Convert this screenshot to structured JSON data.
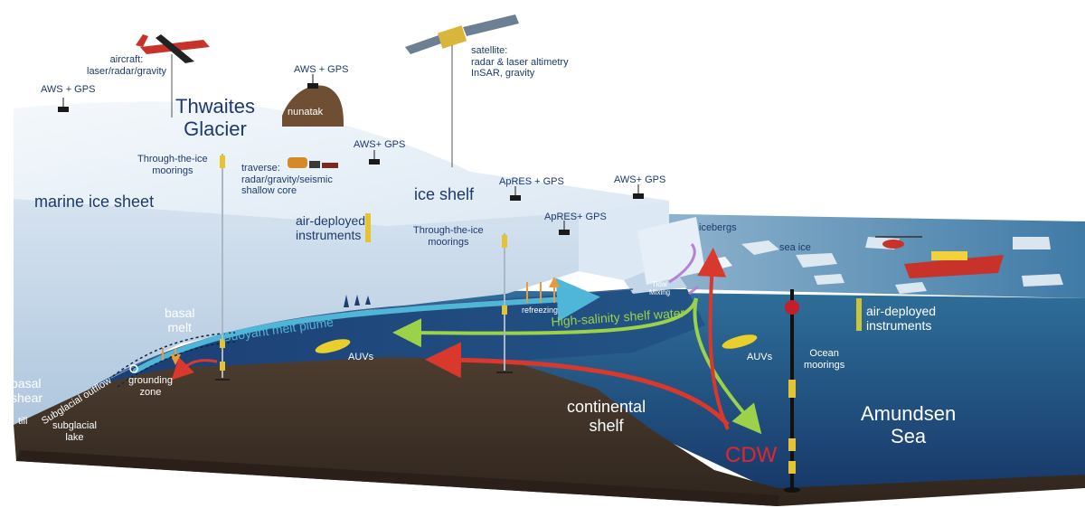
{
  "labels": {
    "aircraft": "aircraft:\nlaser/radar/gravity",
    "aws_gps_left": "AWS + GPS",
    "thwaites_glacier": "Thwaites\nGlacier",
    "aws_gps_nunatak": "AWS + GPS",
    "nunatak": "nunatak",
    "satellite": "satellite:\nradar & laser altimetry\nInSAR, gravity",
    "aws_gps_mid": "AWS+ GPS",
    "through_ice_moorings_left": "Through-the-ice\nmoorings",
    "traverse": "traverse:\nradar/gravity/seismic\nshallow core",
    "marine_ice_sheet": "marine ice sheet",
    "ice_shelf": "ice shelf",
    "apres_gps_1": "ApRES + GPS",
    "aws_gps_right": "AWS+ GPS",
    "apres_gps_2": "ApRES+ GPS",
    "air_deployed_left": "air-deployed\ninstruments",
    "through_ice_moorings_mid": "Through-the-ice\nmoorings",
    "icebergs": "icebergs",
    "sea_ice": "sea ice",
    "refreezing": "refreezing",
    "tidal_mixing": "Tidal\nMixing",
    "air_deployed_right": "air-deployed\ninstruments",
    "basal_melt": "basal\nmelt",
    "buoyant_melt_plume": "Buoyant melt plume",
    "high_salinity": "High-salinity shelf water",
    "auvs_left": "AUVs",
    "auvs_right": "AUVs",
    "ocean_moorings": "Ocean\nmoorings",
    "basal_shear": "basal\nshear",
    "grounding_zone": "grounding\nzone",
    "subglacial_outflow": "Subglacial outflow",
    "till": "till",
    "subglacial_lake": "subglacial\nlake",
    "continental_shelf": "continental\nshelf",
    "amundsen_sea": "Amundsen\nSea",
    "cdw": "CDW"
  },
  "colors": {
    "ice_top": "#e8f1f8",
    "ice_face": "#c7d8ea",
    "ocean_surface": "#2f6f9a",
    "ocean_deep": "#1b3f72",
    "bed": "#4a3a2e",
    "bed_dark": "#2b221b",
    "label_blue": "#1d3a6b",
    "cdw_red": "#e3262b",
    "shelf_water_green": "#9bd24a",
    "melt_plume_teal": "#4fb6d8"
  },
  "icons": [
    "aircraft-icon",
    "satellite-icon",
    "helicopter-icon",
    "ship-icon",
    "auv-icon",
    "weather-station-icon",
    "mooring-icon",
    "nunatak-icon",
    "traverse-vehicle-icon"
  ]
}
